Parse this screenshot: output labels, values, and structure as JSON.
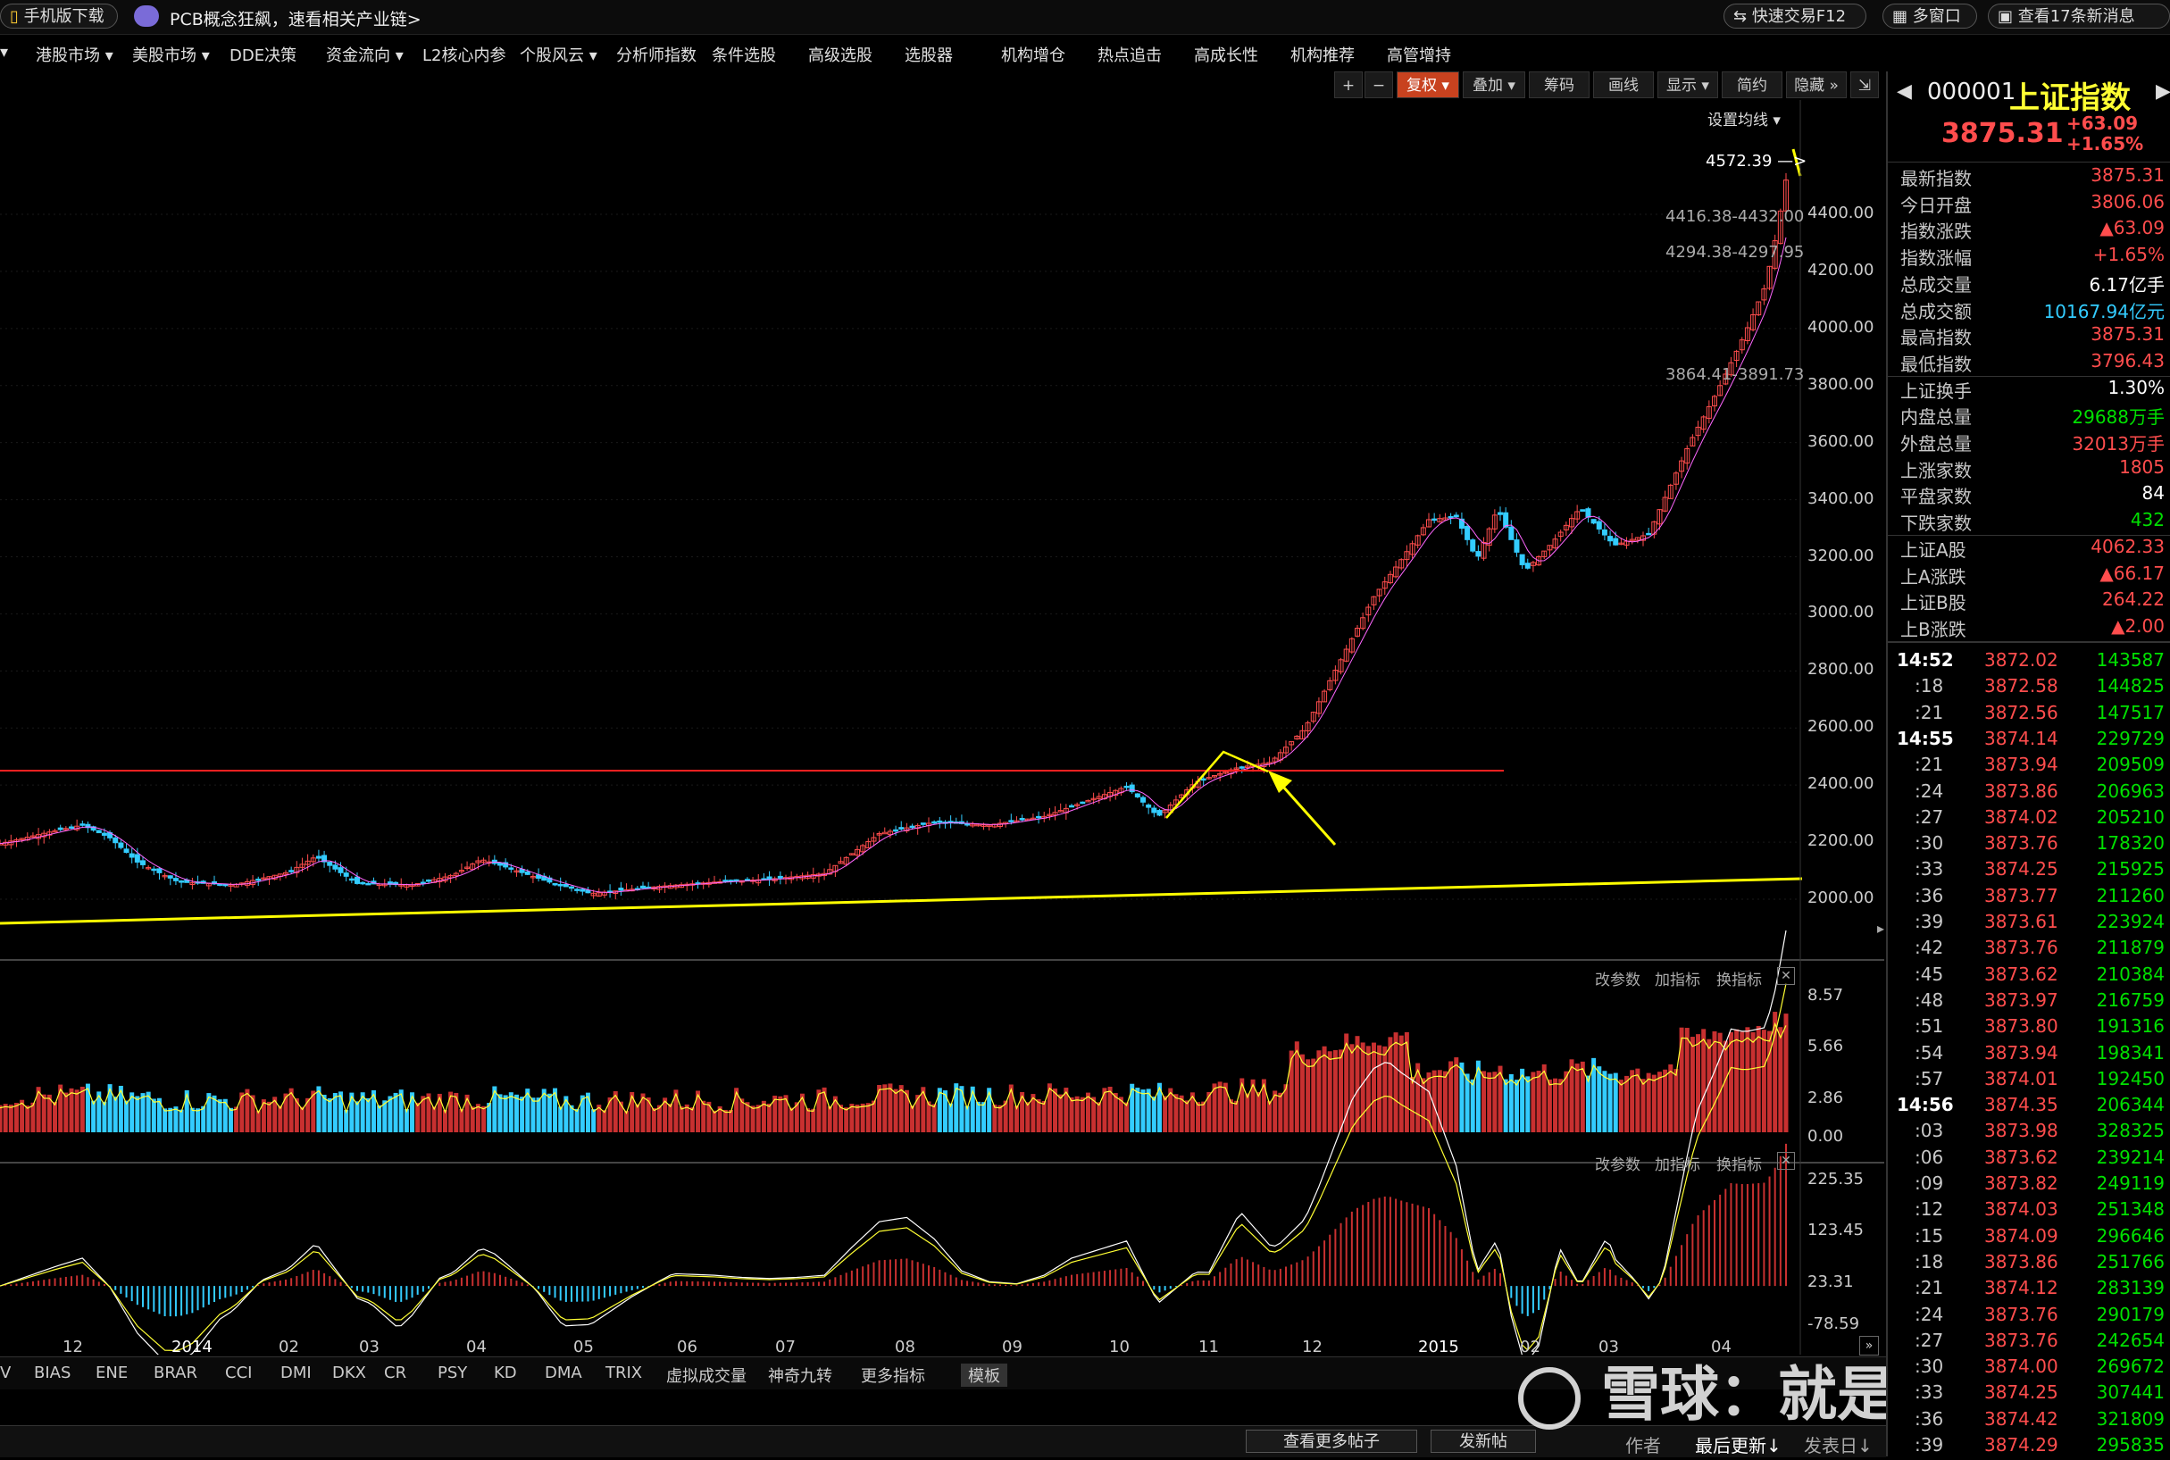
{
  "topbar": {
    "mobile_download": "手机版下载",
    "promo": "PCB概念狂飙，速看相关产业链>",
    "quick_trade": "快速交易F12",
    "multi_window": "多窗口",
    "news": "查看17条新消息"
  },
  "menu": [
    "港股市场 ▾",
    "美股市场 ▾",
    "DDE决策",
    "资金流向 ▾",
    "L2核心内参",
    "个股风云 ▾",
    "分析师指数",
    "条件选股",
    "高级选股",
    "选股器",
    "机构增仓",
    "热点追击",
    "高成长性",
    "机构推荐",
    "高管增持"
  ],
  "chart_toolbar": {
    "plus": "+",
    "minus": "−",
    "fuquan": "复权 ▾",
    "overlay": "叠加 ▾",
    "chips": "筹码",
    "draw": "画线",
    "display": "显示 ▾",
    "simple": "简约",
    "hide": "隐藏 »",
    "expand": "⇲",
    "ma_setting": "设置均线 ▾"
  },
  "quote": {
    "code": "000001",
    "name": "上证指数",
    "price": "3875.31",
    "change": "+63.09",
    "change_pct": "+1.65%",
    "rows": [
      {
        "label": "最新指数",
        "value": "3875.31",
        "color": "#ff4d4d"
      },
      {
        "label": "今日开盘",
        "value": "3806.06",
        "color": "#ff4d4d"
      },
      {
        "label": "指数涨跌",
        "value": "▲63.09",
        "color": "#ff4d4d"
      },
      {
        "label": "指数涨幅",
        "value": "+1.65%",
        "color": "#ff4d4d"
      },
      {
        "label": "总成交量",
        "value": "6.17亿手",
        "color": "#ffffff"
      },
      {
        "label": "总成交额",
        "value": "10167.94亿元",
        "color": "#33ccff"
      },
      {
        "label": "最高指数",
        "value": "3875.31",
        "color": "#ff4d4d"
      },
      {
        "label": "最低指数",
        "value": "3796.43",
        "color": "#ff4d4d"
      },
      {
        "label": "上证换手",
        "value": "1.30%",
        "color": "#ffffff"
      },
      {
        "label": "内盘总量",
        "value": "29688万手",
        "color": "#00e000"
      },
      {
        "label": "外盘总量",
        "value": "32013万手",
        "color": "#ff4d4d"
      },
      {
        "label": "上涨家数",
        "value": "1805",
        "color": "#ff4d4d"
      },
      {
        "label": "平盘家数",
        "value": "84",
        "color": "#ffffff"
      },
      {
        "label": "下跌家数",
        "value": "432",
        "color": "#00e000"
      },
      {
        "label": "上证A股",
        "value": "4062.33",
        "color": "#ff4d4d"
      },
      {
        "label": "上A涨跌",
        "value": "▲66.17",
        "color": "#ff4d4d"
      },
      {
        "label": "上证B股",
        "value": "264.22",
        "color": "#ff4d4d"
      },
      {
        "label": "上B涨跌",
        "value": "▲2.00",
        "color": "#ff4d4d"
      }
    ],
    "ticks": [
      {
        "t": "14:52",
        "p": "3872.02",
        "v": "143587",
        "bold": true
      },
      {
        "t": ":18",
        "p": "3872.58",
        "v": "144825"
      },
      {
        "t": ":21",
        "p": "3872.56",
        "v": "147517"
      },
      {
        "t": "14:55",
        "p": "3874.14",
        "v": "229729",
        "bold": true
      },
      {
        "t": ":21",
        "p": "3873.94",
        "v": "209509"
      },
      {
        "t": ":24",
        "p": "3873.86",
        "v": "206963"
      },
      {
        "t": ":27",
        "p": "3874.02",
        "v": "205210"
      },
      {
        "t": ":30",
        "p": "3873.76",
        "v": "178320"
      },
      {
        "t": ":33",
        "p": "3874.25",
        "v": "215925"
      },
      {
        "t": ":36",
        "p": "3873.77",
        "v": "211260"
      },
      {
        "t": ":39",
        "p": "3873.61",
        "v": "223924"
      },
      {
        "t": ":42",
        "p": "3873.76",
        "v": "211879"
      },
      {
        "t": ":45",
        "p": "3873.62",
        "v": "210384"
      },
      {
        "t": ":48",
        "p": "3873.97",
        "v": "216759"
      },
      {
        "t": ":51",
        "p": "3873.80",
        "v": "191316"
      },
      {
        "t": ":54",
        "p": "3873.94",
        "v": "198341"
      },
      {
        "t": ":57",
        "p": "3874.01",
        "v": "192450"
      },
      {
        "t": "14:56",
        "p": "3874.35",
        "v": "206344",
        "bold": true
      },
      {
        "t": ":03",
        "p": "3873.98",
        "v": "328325"
      },
      {
        "t": ":06",
        "p": "3873.62",
        "v": "239214"
      },
      {
        "t": ":09",
        "p": "3873.82",
        "v": "249119"
      },
      {
        "t": ":12",
        "p": "3874.03",
        "v": "251348"
      },
      {
        "t": ":15",
        "p": "3874.09",
        "v": "296646"
      },
      {
        "t": ":18",
        "p": "3873.86",
        "v": "251766"
      },
      {
        "t": ":21",
        "p": "3874.12",
        "v": "283139"
      },
      {
        "t": ":24",
        "p": "3873.76",
        "v": "290179"
      },
      {
        "t": ":27",
        "p": "3873.76",
        "v": "242654"
      },
      {
        "t": ":30",
        "p": "3874.00",
        "v": "269672"
      },
      {
        "t": ":33",
        "p": "3874.25",
        "v": "307441"
      },
      {
        "t": ":36",
        "p": "3874.42",
        "v": "321809"
      },
      {
        "t": ":39",
        "p": "3874.29",
        "v": "295835"
      }
    ]
  },
  "price_axis": [
    "4400.00",
    "4200.00",
    "4000.00",
    "3800.00",
    "3600.00",
    "3400.00",
    "3200.00",
    "3000.00",
    "2800.00",
    "2600.00",
    "2400.00",
    "2200.00",
    "2000.00"
  ],
  "annotations": {
    "high": "4572.39",
    "gap1": "4416.38-4432.00",
    "gap2": "4294.38-4297.95",
    "gap3": "3864.41-3891.73"
  },
  "volume_panel": {
    "axis": [
      "8.57",
      "5.66",
      "2.86",
      "0.00"
    ],
    "btn_param": "改参数",
    "btn_add": "加指标",
    "btn_switch": "换指标"
  },
  "macd_panel": {
    "axis": [
      "225.35",
      "123.45",
      "23.31",
      "-78.59"
    ],
    "btn_param": "改参数",
    "btn_add": "加指标",
    "btn_switch": "换指标"
  },
  "time_axis": [
    "12",
    "2014",
    "02",
    "03",
    "04",
    "05",
    "06",
    "07",
    "08",
    "09",
    "10",
    "11",
    "12",
    "2015",
    "02",
    "03",
    "04"
  ],
  "indicators": [
    "V",
    "BIAS",
    "ENE",
    "BRAR",
    "CCI",
    "DMI",
    "DKX",
    "CR",
    "PSY",
    "KD",
    "DMA",
    "TRIX",
    "虚拟成交量",
    "神奇九转",
    "更多指标",
    "模板"
  ],
  "footer": {
    "more_posts": "查看更多帖子",
    "post": "发新帖",
    "author": "作者",
    "last_update": "最后更新↓",
    "post_date": "发表日↓",
    "watermark": "雪球：就是死不了"
  },
  "colors": {
    "up": "#ff4d4d",
    "down": "#33ccff",
    "ma": "#ffff33",
    "support": "#ffff00",
    "resist": "#ff2020"
  }
}
